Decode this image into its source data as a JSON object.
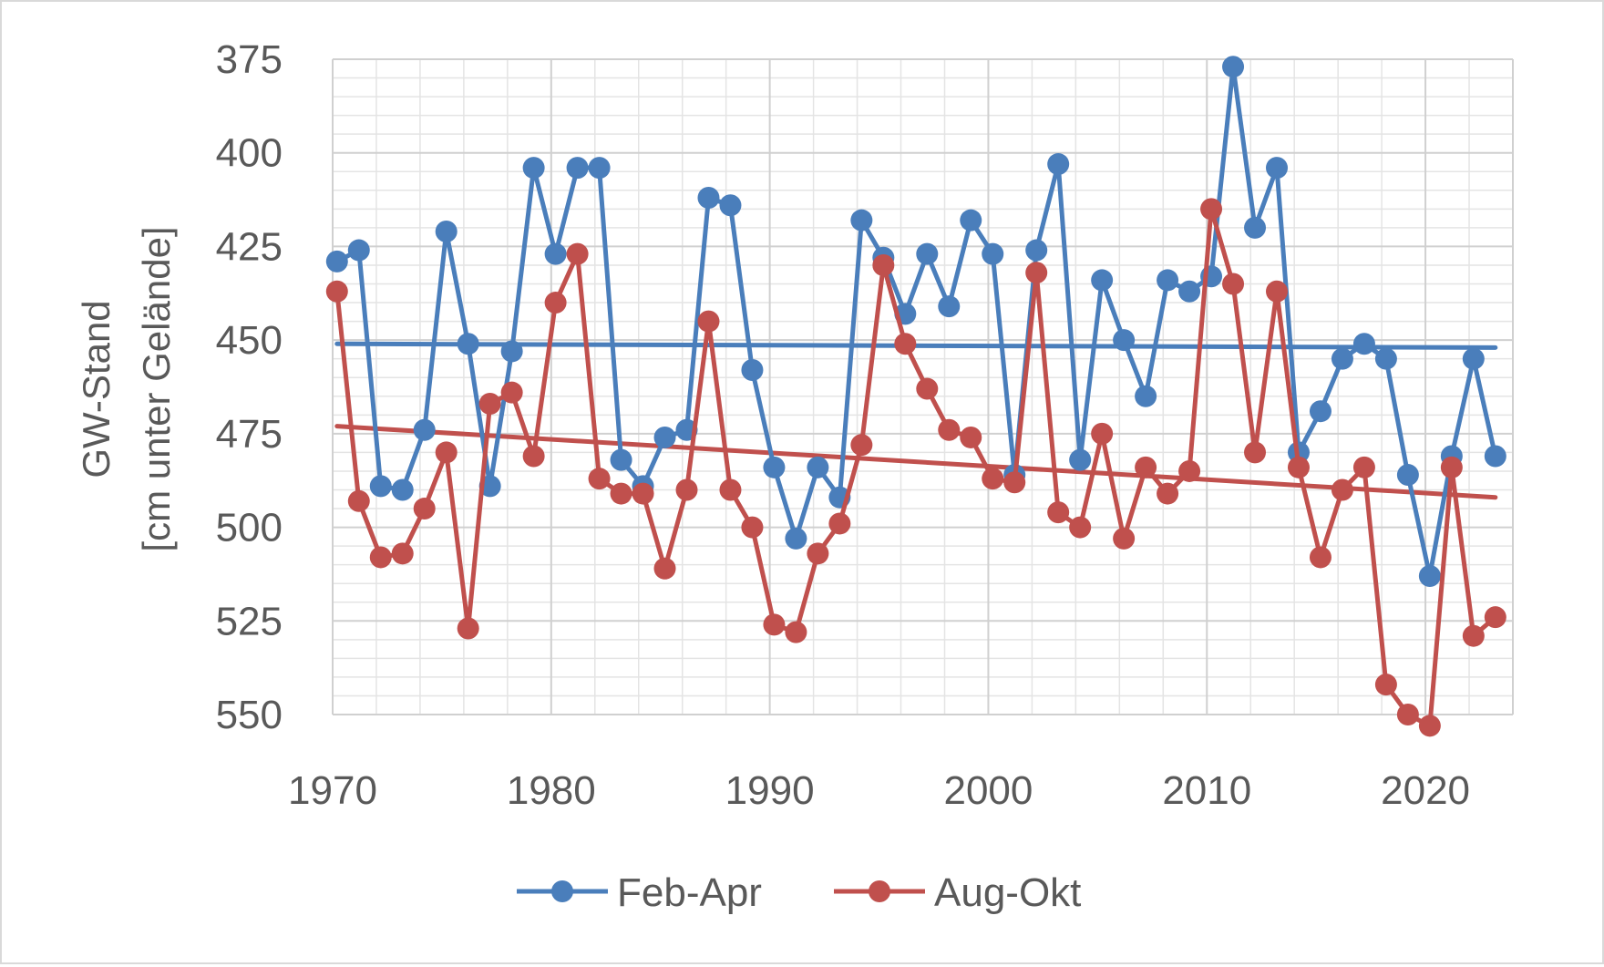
{
  "chart_data": {
    "type": "line",
    "ylabel": [
      "GW-Stand",
      "[cm unter Gelände]"
    ],
    "xlabel": "",
    "title": "",
    "xlim": [
      1970,
      2024
    ],
    "ylim": [
      375,
      550
    ],
    "y_inverted": true,
    "x_ticks": [
      1970,
      1980,
      1990,
      2000,
      2010,
      2020
    ],
    "y_ticks": [
      375,
      400,
      425,
      450,
      475,
      500,
      525,
      550
    ],
    "grid": "major and minor, both axes",
    "legend_position": "bottom",
    "x": [
      1970.2,
      1971.2,
      1972.2,
      1973.2,
      1974.2,
      1975.2,
      1976.2,
      1977.2,
      1978.2,
      1979.2,
      1980.2,
      1981.2,
      1982.2,
      1983.2,
      1984.2,
      1985.2,
      1986.2,
      1987.2,
      1988.2,
      1989.2,
      1990.2,
      1991.2,
      1992.2,
      1993.2,
      1994.2,
      1995.2,
      1996.2,
      1997.2,
      1998.2,
      1999.2,
      2000.2,
      2001.2,
      2002.2,
      2003.2,
      2004.2,
      2005.2,
      2006.2,
      2007.2,
      2008.2,
      2009.2,
      2010.2,
      2011.2,
      2012.2,
      2013.2,
      2014.2,
      2015.2,
      2016.2,
      2017.2,
      2018.2,
      2019.2,
      2020.2,
      2021.2,
      2022.2,
      2023.2
    ],
    "series": [
      {
        "name": "Feb-Apr",
        "color": "#4a7ebb",
        "values": [
          429,
          426,
          489,
          490,
          474,
          421,
          451,
          489,
          453,
          404,
          427,
          404,
          404,
          482,
          489,
          476,
          474,
          412,
          414,
          458,
          484,
          503,
          484,
          492,
          418,
          428,
          443,
          427,
          441,
          418,
          427,
          486,
          426,
          403,
          482,
          434,
          450,
          465,
          434,
          437,
          433,
          377,
          420,
          404,
          480,
          469,
          455,
          451,
          455,
          486,
          513,
          481,
          455,
          481
        ],
        "trend": [
          451,
          452
        ]
      },
      {
        "name": "Aug-Okt",
        "color": "#c0504d",
        "values": [
          437,
          493,
          508,
          507,
          495,
          480,
          527,
          467,
          464,
          481,
          440,
          427,
          487,
          491,
          491,
          511,
          490,
          445,
          490,
          500,
          526,
          528,
          507,
          499,
          478,
          430,
          451,
          463,
          474,
          476,
          487,
          488,
          432,
          496,
          500,
          475,
          503,
          484,
          491,
          485,
          415,
          435,
          480,
          437,
          484,
          508,
          490,
          484,
          542,
          550,
          553,
          484,
          529,
          524
        ],
        "trend": [
          473,
          492
        ]
      }
    ]
  }
}
